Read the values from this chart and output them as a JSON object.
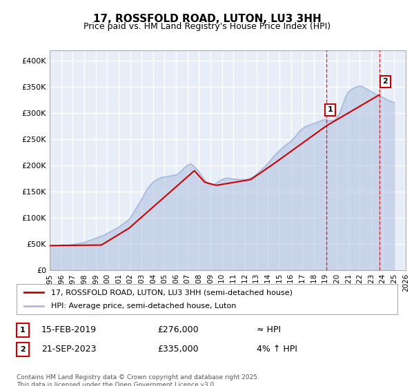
{
  "title": "17, ROSSFOLD ROAD, LUTON, LU3 3HH",
  "subtitle": "Price paid vs. HM Land Registry's House Price Index (HPI)",
  "title_fontsize": 12,
  "subtitle_fontsize": 10,
  "background_color": "#ffffff",
  "plot_bg_color": "#e8eef8",
  "grid_color": "#ffffff",
  "hpi_color": "#aabbdd",
  "house_color": "#cc0000",
  "ylim": [
    0,
    420000
  ],
  "yticks": [
    0,
    50000,
    100000,
    150000,
    200000,
    250000,
    300000,
    350000,
    400000
  ],
  "ytick_labels": [
    "£0",
    "£50K",
    "£100K",
    "£150K",
    "£200K",
    "£250K",
    "£300K",
    "£350K",
    "£400K"
  ],
  "xlim_start": 1995,
  "xlim_end": 2026,
  "xtick_years": [
    1995,
    1996,
    1997,
    1998,
    1999,
    2000,
    2001,
    2002,
    2003,
    2004,
    2005,
    2006,
    2007,
    2008,
    2009,
    2010,
    2011,
    2012,
    2013,
    2014,
    2015,
    2016,
    2017,
    2018,
    2019,
    2020,
    2021,
    2022,
    2023,
    2024,
    2025,
    2026
  ],
  "marker1_x": 2019.12,
  "marker1_y": 276000,
  "marker1_label": "1",
  "marker1_date": "15-FEB-2019",
  "marker1_price": "£276,000",
  "marker1_hpi": "≈ HPI",
  "marker2_x": 2023.72,
  "marker2_y": 335000,
  "marker2_label": "2",
  "marker2_date": "21-SEP-2023",
  "marker2_price": "£335,000",
  "marker2_hpi": "4% ↑ HPI",
  "legend_house_label": "17, ROSSFOLD ROAD, LUTON, LU3 3HH (semi-detached house)",
  "legend_hpi_label": "HPI: Average price, semi-detached house, Luton",
  "footer_text": "Contains HM Land Registry data © Crown copyright and database right 2025.\nThis data is licensed under the Open Government Licence v3.0.",
  "hpi_x": [
    1995,
    1995.25,
    1995.5,
    1995.75,
    1996,
    1996.25,
    1996.5,
    1996.75,
    1997,
    1997.25,
    1997.5,
    1997.75,
    1998,
    1998.25,
    1998.5,
    1998.75,
    1999,
    1999.25,
    1999.5,
    1999.75,
    2000,
    2000.25,
    2000.5,
    2000.75,
    2001,
    2001.25,
    2001.5,
    2001.75,
    2002,
    2002.25,
    2002.5,
    2002.75,
    2003,
    2003.25,
    2003.5,
    2003.75,
    2004,
    2004.25,
    2004.5,
    2004.75,
    2005,
    2005.25,
    2005.5,
    2005.75,
    2006,
    2006.25,
    2006.5,
    2006.75,
    2007,
    2007.25,
    2007.5,
    2007.75,
    2008,
    2008.25,
    2008.5,
    2008.75,
    2009,
    2009.25,
    2009.5,
    2009.75,
    2010,
    2010.25,
    2010.5,
    2010.75,
    2011,
    2011.25,
    2011.5,
    2011.75,
    2012,
    2012.25,
    2012.5,
    2012.75,
    2013,
    2013.25,
    2013.5,
    2013.75,
    2014,
    2014.25,
    2014.5,
    2014.75,
    2015,
    2015.25,
    2015.5,
    2015.75,
    2016,
    2016.25,
    2016.5,
    2016.75,
    2017,
    2017.25,
    2017.5,
    2017.75,
    2018,
    2018.25,
    2018.5,
    2018.75,
    2019,
    2019.25,
    2019.5,
    2019.75,
    2020,
    2020.25,
    2020.5,
    2020.75,
    2021,
    2021.25,
    2021.5,
    2021.75,
    2022,
    2022.25,
    2022.5,
    2022.75,
    2023,
    2023.25,
    2023.5,
    2023.75,
    2024,
    2024.25,
    2024.5,
    2024.75,
    2025
  ],
  "hpi_y": [
    46000,
    46500,
    47000,
    47500,
    48000,
    48500,
    48000,
    48500,
    49000,
    50000,
    51000,
    52000,
    53000,
    55000,
    57000,
    59000,
    61000,
    63000,
    65000,
    67000,
    70000,
    73000,
    76000,
    79000,
    82000,
    86000,
    90000,
    94000,
    99000,
    108000,
    117000,
    126000,
    135000,
    145000,
    155000,
    162000,
    168000,
    172000,
    175000,
    177000,
    178000,
    179000,
    180000,
    181000,
    182000,
    185000,
    190000,
    196000,
    200000,
    203000,
    200000,
    194000,
    188000,
    180000,
    172000,
    165000,
    162000,
    163000,
    166000,
    170000,
    173000,
    175000,
    176000,
    175000,
    174000,
    174000,
    173000,
    173000,
    173000,
    174000,
    176000,
    179000,
    183000,
    188000,
    193000,
    198000,
    204000,
    210000,
    217000,
    223000,
    228000,
    233000,
    238000,
    242000,
    246000,
    252000,
    258000,
    265000,
    270000,
    274000,
    276000,
    278000,
    280000,
    282000,
    284000,
    286000,
    288000,
    286000,
    285000,
    286000,
    290000,
    300000,
    315000,
    330000,
    340000,
    345000,
    348000,
    350000,
    352000,
    350000,
    347000,
    344000,
    341000,
    338000,
    335000,
    333000,
    330000,
    327000,
    324000,
    322000,
    320000
  ],
  "house_x": [
    1995.0,
    1999.5,
    2001.9,
    2007.6,
    2008.5,
    2009.5,
    2012.5,
    2014.5,
    2019.12,
    2023.72
  ],
  "house_y": [
    47000,
    48000,
    80000,
    190000,
    168000,
    162000,
    173000,
    203000,
    276000,
    335000
  ]
}
